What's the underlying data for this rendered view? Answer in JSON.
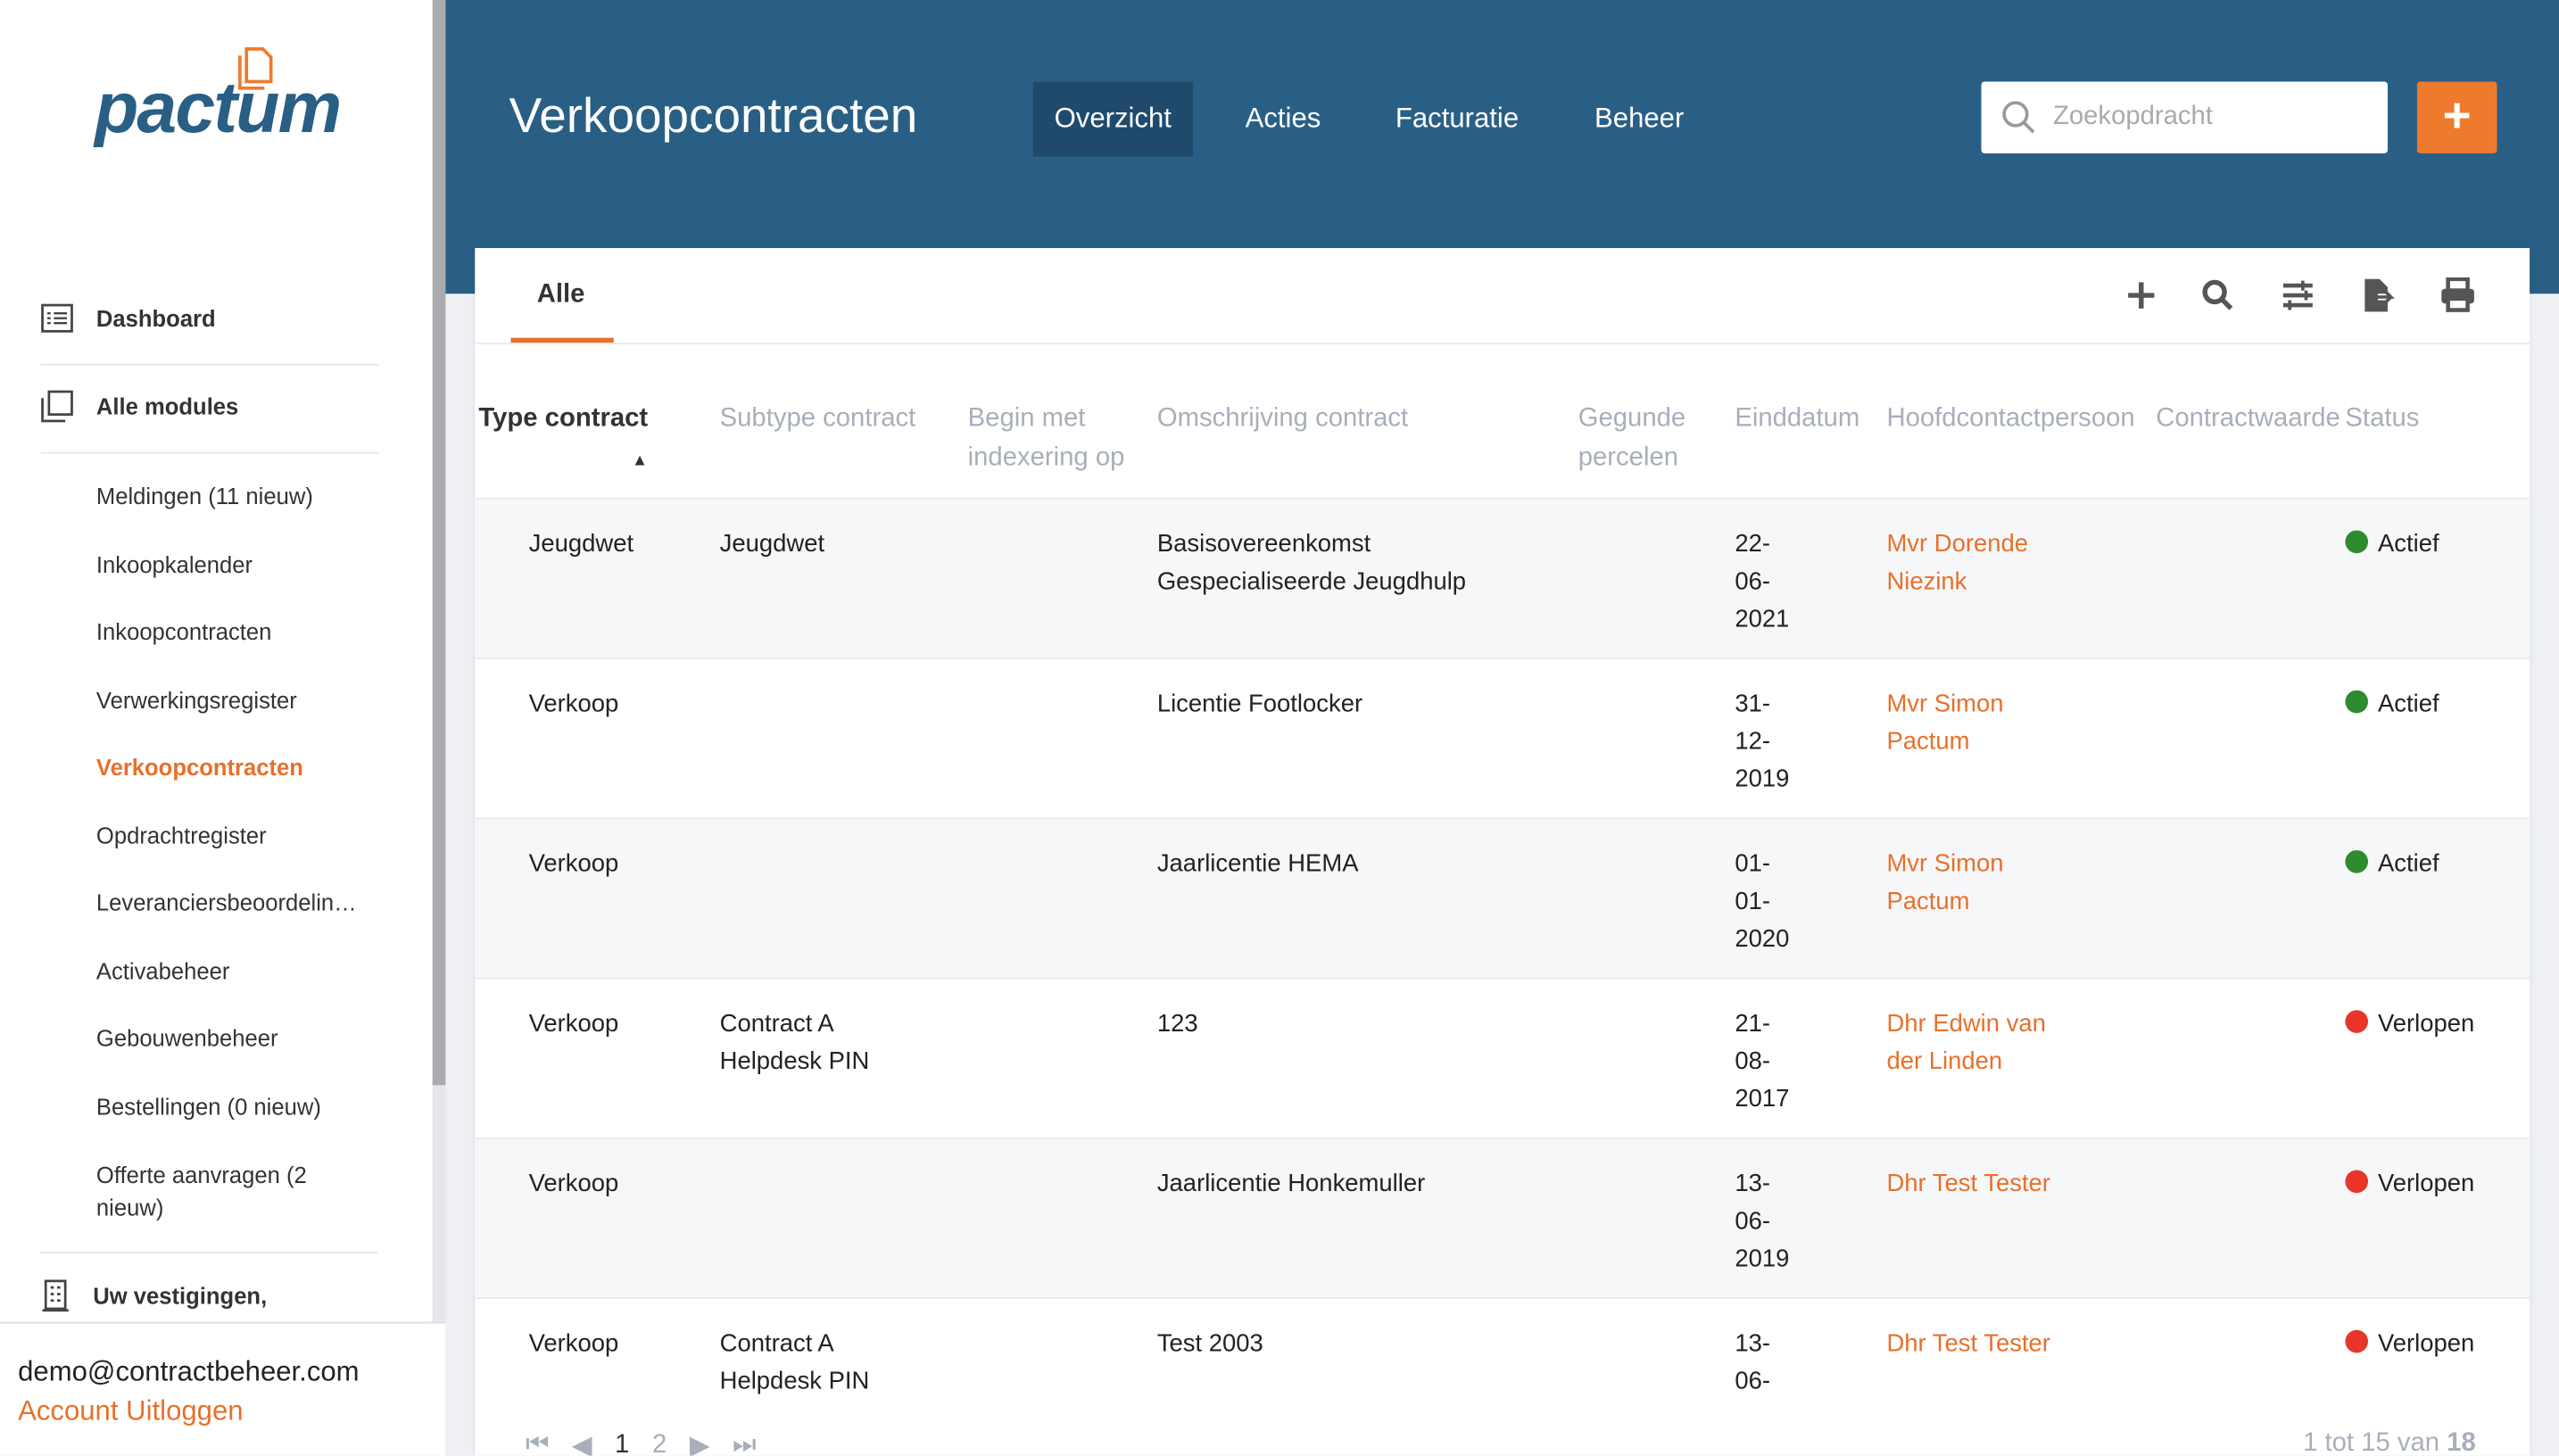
{
  "logo": {
    "text": "pactum"
  },
  "sidebar": {
    "main": [
      {
        "label": "Dashboard",
        "icon": "list-icon"
      },
      {
        "label": "Alle modules",
        "icon": "copy-icon"
      }
    ],
    "items": [
      {
        "label": "Meldingen (11 nieuw)"
      },
      {
        "label": "Inkoopkalender"
      },
      {
        "label": "Inkoopcontracten"
      },
      {
        "label": "Verwerkingsregister"
      },
      {
        "label": "Verkoopcontracten",
        "active": true
      },
      {
        "label": "Opdrachtregister"
      },
      {
        "label": "Leveranciersbeoordelingen"
      },
      {
        "label": "Activabeheer"
      },
      {
        "label": "Gebouwenbeheer"
      },
      {
        "label": "Bestellingen (0 nieuw)"
      },
      {
        "label": "Offerte aanvragen (2 nieuw)"
      }
    ],
    "vestigingen": "Uw vestigingen,",
    "user_email": "demo@contractbeheer.com",
    "account_link": "Account",
    "logout_link": "Uitloggen"
  },
  "header": {
    "title": "Verkoopcontracten",
    "nav": [
      "Overzicht",
      "Acties",
      "Facturatie",
      "Beheer"
    ],
    "active_nav": "Overzicht",
    "search_placeholder": "Zoekopdracht",
    "add_label": "+"
  },
  "tabs": [
    "Alle"
  ],
  "toolbar_icons": [
    "plus-icon",
    "search-icon",
    "sliders-icon",
    "export-icon",
    "print-icon"
  ],
  "table": {
    "columns": [
      "Type contract",
      "Subtype contract",
      "Begin met indexering op",
      "Omschrijving contract",
      "Gegunde percelen",
      "Einddatum",
      "Hoofdcontactpersoon",
      "Contractwaarde",
      "Status"
    ],
    "sort_indicator": "▲",
    "rows": [
      {
        "type": "Jeugdwet",
        "subtype": "Jeugdwet",
        "omschrijving": "Basisovereenkomst Gespecialiseerde Jeugdhulp",
        "einddatum": "22-06-2021",
        "contact": "Mvr Dorende Niezink",
        "status": "Actief"
      },
      {
        "type": "Verkoop",
        "subtype": "",
        "omschrijving": "Licentie Footlocker",
        "einddatum": "31-12-2019",
        "contact": "Mvr Simon Pactum",
        "status": "Actief"
      },
      {
        "type": "Verkoop",
        "subtype": "",
        "omschrijving": "Jaarlicentie HEMA",
        "einddatum": "01-01-2020",
        "contact": "Mvr Simon Pactum",
        "status": "Actief"
      },
      {
        "type": "Verkoop",
        "subtype": "Contract A Helpdesk PIN",
        "omschrijving": "123",
        "einddatum": "21-08-2017",
        "contact": "Dhr Edwin van der Linden",
        "status": "Verlopen"
      },
      {
        "type": "Verkoop",
        "subtype": "",
        "omschrijving": "Jaarlicentie Honkemuller",
        "einddatum": "13-06-2019",
        "contact": "Dhr Test Tester",
        "status": "Verlopen"
      },
      {
        "type": "Verkoop",
        "subtype": "Contract A Helpdesk PIN",
        "omschrijving": "Test 2003",
        "einddatum": "13-06-",
        "contact": "Dhr Test Tester",
        "status": "Verlopen"
      }
    ]
  },
  "status_colors": {
    "Actief": "#2e8b2e",
    "Verlopen": "#e8352a"
  },
  "pagination": {
    "pages": [
      "1",
      "2"
    ],
    "current": "1",
    "summary_prefix": "1 tot 15 van",
    "total": "18"
  },
  "colors": {
    "brand": "#2a5f85",
    "accent": "#ee7a2d"
  }
}
